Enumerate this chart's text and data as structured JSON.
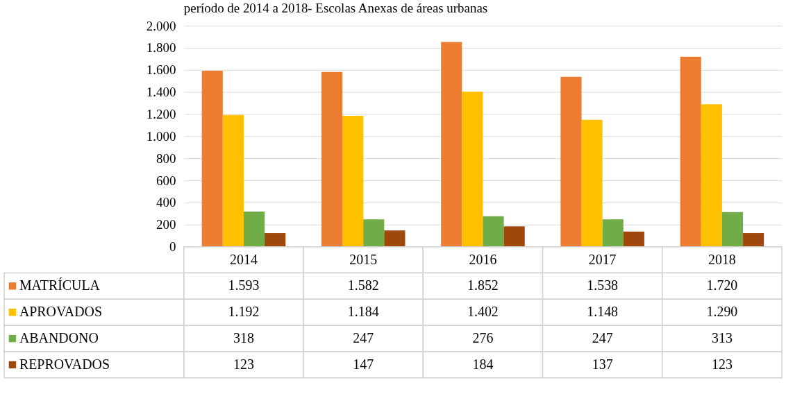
{
  "chart_data": {
    "type": "bar",
    "title": "período de 2014 a 2018- Escolas Anexas de áreas urbanas",
    "categories": [
      "2014",
      "2015",
      "2016",
      "2017",
      "2018"
    ],
    "series": [
      {
        "name": "MATRÍCULA",
        "color": "#ed7d31",
        "values": [
          1593,
          1582,
          1852,
          1538,
          1720
        ],
        "value_labels": [
          "1.593",
          "1.582",
          "1.852",
          "1.538",
          "1.720"
        ]
      },
      {
        "name": "APROVADOS",
        "color": "#ffc000",
        "values": [
          1192,
          1184,
          1402,
          1148,
          1290
        ],
        "value_labels": [
          "1.192",
          "1.184",
          "1.402",
          "1.148",
          "1.290"
        ]
      },
      {
        "name": "ABANDONO",
        "color": "#70ad47",
        "values": [
          318,
          247,
          276,
          247,
          313
        ],
        "value_labels": [
          "318",
          "247",
          "276",
          "247",
          "313"
        ]
      },
      {
        "name": "REPROVADOS",
        "color": "#9e480e",
        "values": [
          123,
          147,
          184,
          137,
          123
        ],
        "value_labels": [
          "123",
          "147",
          "184",
          "137",
          "123"
        ]
      }
    ],
    "ylim": [
      0,
      2000
    ],
    "yticks": [
      0,
      200,
      400,
      600,
      800,
      {
        "value": 1000,
        "label": "1.000"
      },
      {
        "value": 1200,
        "label": "1.200"
      },
      {
        "value": 1400,
        "label": "1.400"
      },
      {
        "value": 1600,
        "label": "1.600"
      },
      {
        "value": 1800,
        "label": "1.800"
      },
      {
        "value": 2000,
        "label": "2.000"
      }
    ],
    "grid": "y",
    "tick_labels": "y",
    "legend": "bottom left"
  }
}
